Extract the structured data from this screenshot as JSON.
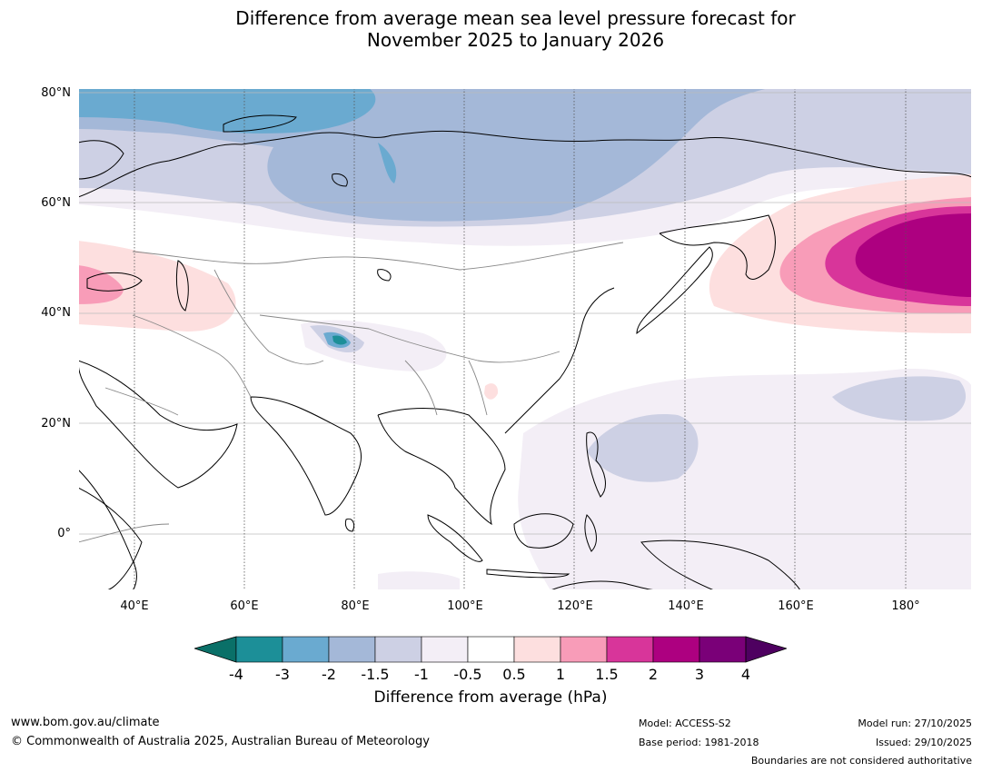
{
  "title": {
    "line1": "Difference from average mean sea level pressure forecast for",
    "line2": "November 2025 to January 2026"
  },
  "map": {
    "lat_labels": [
      "80°N",
      "60°N",
      "40°N",
      "20°N",
      "0°"
    ],
    "lon_labels": [
      "40°E",
      "60°E",
      "80°E",
      "100°E",
      "120°E",
      "140°E",
      "160°E",
      "180°"
    ],
    "lon_range": [
      30,
      192
    ],
    "lat_range": [
      -10,
      81
    ]
  },
  "colorbar": {
    "title": "Difference from average (hPa)",
    "tick_labels": [
      "-4",
      "-3",
      "-2",
      "-1.5",
      "-1",
      "-0.5",
      "0.5",
      "1",
      "1.5",
      "2",
      "3",
      "4"
    ],
    "colors": [
      "#0a7068",
      "#1c8f98",
      "#6aaad0",
      "#a4b8d8",
      "#cdd0e4",
      "#f3eef6",
      "#ffffff",
      "#fddfdf",
      "#f89cb8",
      "#d8359a",
      "#ad0080",
      "#7a0078",
      "#4e0060"
    ]
  },
  "footer": {
    "url": "www.bom.gov.au/climate",
    "copyright": "© Commonwealth of Australia 2025, Australian Bureau of Meteorology",
    "model": "Model: ACCESS-S2",
    "base_period": "Base period: 1981-2018",
    "model_run": "Model run: 27/10/2025",
    "issued": "Issued: 29/10/2025",
    "boundaries": "Boundaries are not considered authoritative"
  }
}
